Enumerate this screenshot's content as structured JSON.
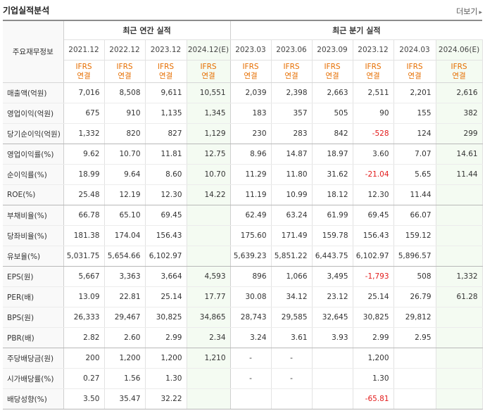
{
  "title": "기업실적분석",
  "more_label": "더보기",
  "row_header": "주요재무정보",
  "groups": {
    "annual": "최근 연간 실적",
    "quarter": "최근 분기 실적"
  },
  "periods": [
    "2021.12",
    "2022.12",
    "2023.12",
    "2024.12(E)",
    "2023.03",
    "2023.06",
    "2023.09",
    "2023.12",
    "2024.03",
    "2024.06(E)"
  ],
  "standard": {
    "line1": "IFRS",
    "line2": "연결"
  },
  "rows": [
    {
      "label": "매출액(억원)",
      "values": [
        "7,016",
        "8,508",
        "9,611",
        "10,551",
        "2,039",
        "2,398",
        "2,663",
        "2,511",
        "2,201",
        "2,616"
      ]
    },
    {
      "label": "영업이익(억원)",
      "values": [
        "675",
        "910",
        "1,135",
        "1,345",
        "183",
        "357",
        "505",
        "90",
        "155",
        "382"
      ]
    },
    {
      "label": "당기순이익(억원)",
      "values": [
        "1,332",
        "820",
        "827",
        "1,129",
        "230",
        "283",
        "842",
        "-528",
        "124",
        "299"
      ]
    },
    {
      "label": "영업이익률(%)",
      "values": [
        "9.62",
        "10.70",
        "11.81",
        "12.75",
        "8.96",
        "14.87",
        "18.97",
        "3.60",
        "7.07",
        "14.61"
      ]
    },
    {
      "label": "순이익률(%)",
      "values": [
        "18.99",
        "9.64",
        "8.60",
        "10.70",
        "11.29",
        "11.80",
        "31.62",
        "-21.04",
        "5.65",
        "11.44"
      ]
    },
    {
      "label": "ROE(%)",
      "values": [
        "25.48",
        "12.19",
        "12.30",
        "14.22",
        "11.19",
        "10.99",
        "18.12",
        "12.30",
        "11.44",
        ""
      ]
    },
    {
      "label": "부채비율(%)",
      "values": [
        "66.78",
        "65.10",
        "69.45",
        "",
        "62.49",
        "63.24",
        "61.99",
        "69.45",
        "66.07",
        ""
      ]
    },
    {
      "label": "당좌비율(%)",
      "values": [
        "181.38",
        "174.04",
        "156.43",
        "",
        "175.60",
        "171.49",
        "159.78",
        "156.43",
        "159.12",
        ""
      ]
    },
    {
      "label": "유보율(%)",
      "values": [
        "5,031.75",
        "5,654.66",
        "6,102.97",
        "",
        "5,639.23",
        "5,851.22",
        "6,443.75",
        "6,102.97",
        "5,896.57",
        ""
      ]
    },
    {
      "label": "EPS(원)",
      "values": [
        "5,667",
        "3,363",
        "3,664",
        "4,593",
        "896",
        "1,066",
        "3,495",
        "-1,793",
        "508",
        "1,332"
      ]
    },
    {
      "label": "PER(배)",
      "values": [
        "13.09",
        "22.81",
        "25.14",
        "17.77",
        "30.08",
        "34.12",
        "23.12",
        "25.14",
        "26.79",
        "61.28"
      ]
    },
    {
      "label": "BPS(원)",
      "values": [
        "26,333",
        "29,467",
        "30,825",
        "34,865",
        "28,743",
        "29,585",
        "32,645",
        "30,825",
        "29,812",
        ""
      ]
    },
    {
      "label": "PBR(배)",
      "values": [
        "2.82",
        "2.60",
        "2.99",
        "2.34",
        "3.24",
        "3.61",
        "3.93",
        "2.99",
        "2.95",
        ""
      ]
    },
    {
      "label": "주당배당금(원)",
      "values": [
        "200",
        "1,200",
        "1,200",
        "1,210",
        "-",
        "-",
        "",
        "1,200",
        "",
        ""
      ]
    },
    {
      "label": "시가배당률(%)",
      "values": [
        "0.27",
        "1.56",
        "1.30",
        "",
        "-",
        "-",
        "",
        "1.30",
        "",
        ""
      ]
    },
    {
      "label": "배당성향(%)",
      "values": [
        "3.50",
        "35.47",
        "32.22",
        "",
        "",
        "",
        "",
        "-65.81",
        "",
        ""
      ]
    }
  ],
  "colors": {
    "standard": "#e66e00",
    "negative": "#e31b1b",
    "estimate_bg": "#f4fbf2"
  }
}
